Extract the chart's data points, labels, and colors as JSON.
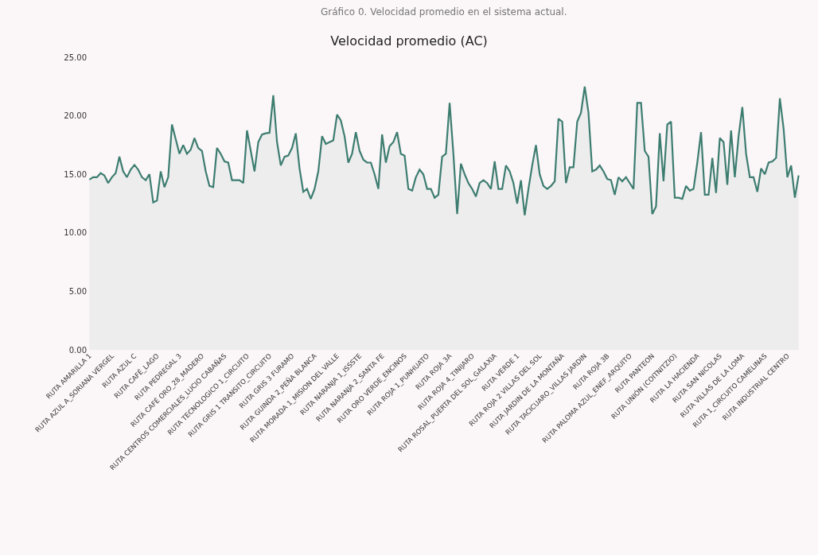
{
  "chart_data": {
    "type": "area",
    "title": "Velocidad promedio (AC)",
    "annotations": [
      "Gráfico 0. Velocidad promedio en el sistema actual."
    ],
    "categories": [
      "RUTA AMARILLA 1",
      null,
      null,
      null,
      null,
      null,
      "RUTA AZUL A_SORIANA VERGEL",
      null,
      null,
      null,
      null,
      null,
      "RUTA AZUL C",
      null,
      null,
      null,
      null,
      null,
      "RUTA CAFÉ_LAGO",
      null,
      null,
      null,
      null,
      null,
      "RUTA PEDREGAL 3",
      null,
      null,
      null,
      null,
      null,
      "RUTA CAFÉ ORO_28_MADERO",
      null,
      null,
      null,
      null,
      null,
      "RUTA CENTROS COMERCIALES_LUCIO CABAÑAS",
      null,
      null,
      null,
      null,
      null,
      "RUTA TECNOLOGICO 1_CIRCUITO",
      null,
      null,
      null,
      null,
      null,
      "RUTA GRIS 1 TRANSITO_CIRCUITO",
      null,
      null,
      null,
      null,
      null,
      "RUTA GRIS 3 FURAMO",
      null,
      null,
      null,
      null,
      null,
      "RUTA GUINDA 2_PEÑA BLANCA",
      null,
      null,
      null,
      null,
      null,
      "RUTA MORADA 1_MISION DEL VALLE",
      null,
      null,
      null,
      null,
      null,
      "RUTA NARANJA 1_ISSSTE",
      null,
      null,
      null,
      null,
      null,
      "RUTA NARANJA 2_SANTA FE",
      null,
      null,
      null,
      null,
      null,
      "RUTA ORO VERDE_ENCINOS",
      null,
      null,
      null,
      null,
      null,
      "RUTA ROJA 1_PUNHUATO",
      null,
      null,
      null,
      null,
      null,
      "RUTA ROJA 3A",
      null,
      null,
      null,
      null,
      null,
      "RUTA ROJA 4_TINIJARO",
      null,
      null,
      null,
      null,
      null,
      "RUTA ROSAL_PUERTA DEL SOL_GALAXIA",
      null,
      null,
      null,
      null,
      null,
      "RUTA VERDE 1",
      null,
      null,
      null,
      null,
      null,
      "RUTA ROJA 2 VILLAS DEL SOL",
      null,
      null,
      null,
      null,
      null,
      "RUTA JARDIN DE LA MONTAÑA",
      null,
      null,
      null,
      null,
      null,
      "RUTA TACICUARO_VILLAS JARDIN",
      null,
      null,
      null,
      null,
      null,
      "RUTA ROJA 3B",
      null,
      null,
      null,
      null,
      null,
      "RUTA PALOMA AZUL_ENEF_ARQUITO",
      null,
      null,
      null,
      null,
      null,
      "RUTA PANTEON",
      null,
      null,
      null,
      null,
      null,
      "RUTA UNIÓN (COITNITZIO)",
      null,
      null,
      null,
      null,
      null,
      "RUTA LA HACIENDA",
      null,
      null,
      null,
      null,
      null,
      "RUTA SAN NICOLAS",
      null,
      null,
      null,
      null,
      null,
      "RUTA VILLAS DE LA LOMA",
      null,
      null,
      null,
      null,
      null,
      "RUTA 1_CIRCUITO CAMELINAS",
      null,
      null,
      null,
      null,
      null,
      "RUTA INDUSTRIAL CENTRO",
      null,
      null,
      null
    ],
    "series": [
      {
        "color": "#3d7d70",
        "values": [
          14.55,
          14.75,
          14.75,
          15.1,
          14.9,
          14.25,
          14.75,
          15.1,
          16.5,
          15.25,
          14.75,
          15.4,
          15.8,
          15.4,
          14.75,
          14.5,
          15,
          12.6,
          12.75,
          15.25,
          13.9,
          14.75,
          19.25,
          18,
          16.75,
          17.5,
          16.75,
          17.1,
          18.1,
          17.25,
          17,
          15.25,
          14,
          13.9,
          17.25,
          16.75,
          16.1,
          16,
          14.5,
          14.5,
          14.5,
          14.25,
          18.75,
          17,
          15.25,
          17.75,
          18.4,
          18.5,
          18.55,
          21.75,
          17.75,
          15.75,
          16.5,
          16.6,
          17.25,
          18.5,
          15.5,
          13.5,
          13.75,
          12.9,
          13.75,
          15.25,
          18.25,
          17.6,
          17.75,
          17.9,
          20.1,
          19.6,
          18.25,
          16,
          16.75,
          18.6,
          17,
          16.25,
          16,
          16,
          15,
          13.75,
          18.4,
          16,
          17.4,
          17.75,
          18.6,
          16.75,
          16.6,
          13.75,
          13.6,
          14.75,
          15.4,
          15,
          13.75,
          13.75,
          13,
          13.25,
          16.5,
          16.75,
          21.1,
          16.75,
          11.6,
          15.9,
          15,
          14.25,
          13.75,
          13.1,
          14.25,
          14.5,
          14.25,
          13.75,
          16.1,
          13.75,
          13.75,
          15.75,
          15.25,
          14.25,
          12.5,
          14.5,
          11.5,
          13.75,
          15.75,
          17.5,
          15,
          14,
          13.75,
          14,
          14.4,
          19.75,
          19.5,
          14.25,
          15.6,
          15.6,
          19.5,
          20.25,
          22.5,
          20.25,
          15.25,
          15.4,
          15.75,
          15.25,
          14.6,
          14.5,
          13.25,
          14.75,
          14.4,
          14.75,
          14.25,
          13.75,
          21.1,
          21.1,
          17,
          16.5,
          11.6,
          12.25,
          18.5,
          14.4,
          19.25,
          19.5,
          13,
          13,
          12.9,
          14,
          13.6,
          13.75,
          16,
          18.6,
          13.25,
          13.25,
          16.4,
          13.4,
          18.1,
          17.75,
          14.1,
          18.75,
          14.75,
          18.25,
          20.75,
          16.75,
          14.75,
          14.75,
          13.5,
          15.5,
          15,
          16,
          16.1,
          16.4,
          21.5,
          18.9,
          14.75,
          15.75,
          13,
          14.9
        ]
      }
    ],
    "ylim": [
      0,
      25
    ],
    "yticks": [
      {
        "value": 0,
        "label": "0.00"
      },
      {
        "value": 5,
        "label": "5.00"
      },
      {
        "value": 10,
        "label": "10.00"
      },
      {
        "value": 15,
        "label": "15.00"
      },
      {
        "value": 20,
        "label": "20.00"
      },
      {
        "value": 25,
        "label": "25.00"
      }
    ],
    "grid": false,
    "marker": "none",
    "line_style": "solid"
  }
}
